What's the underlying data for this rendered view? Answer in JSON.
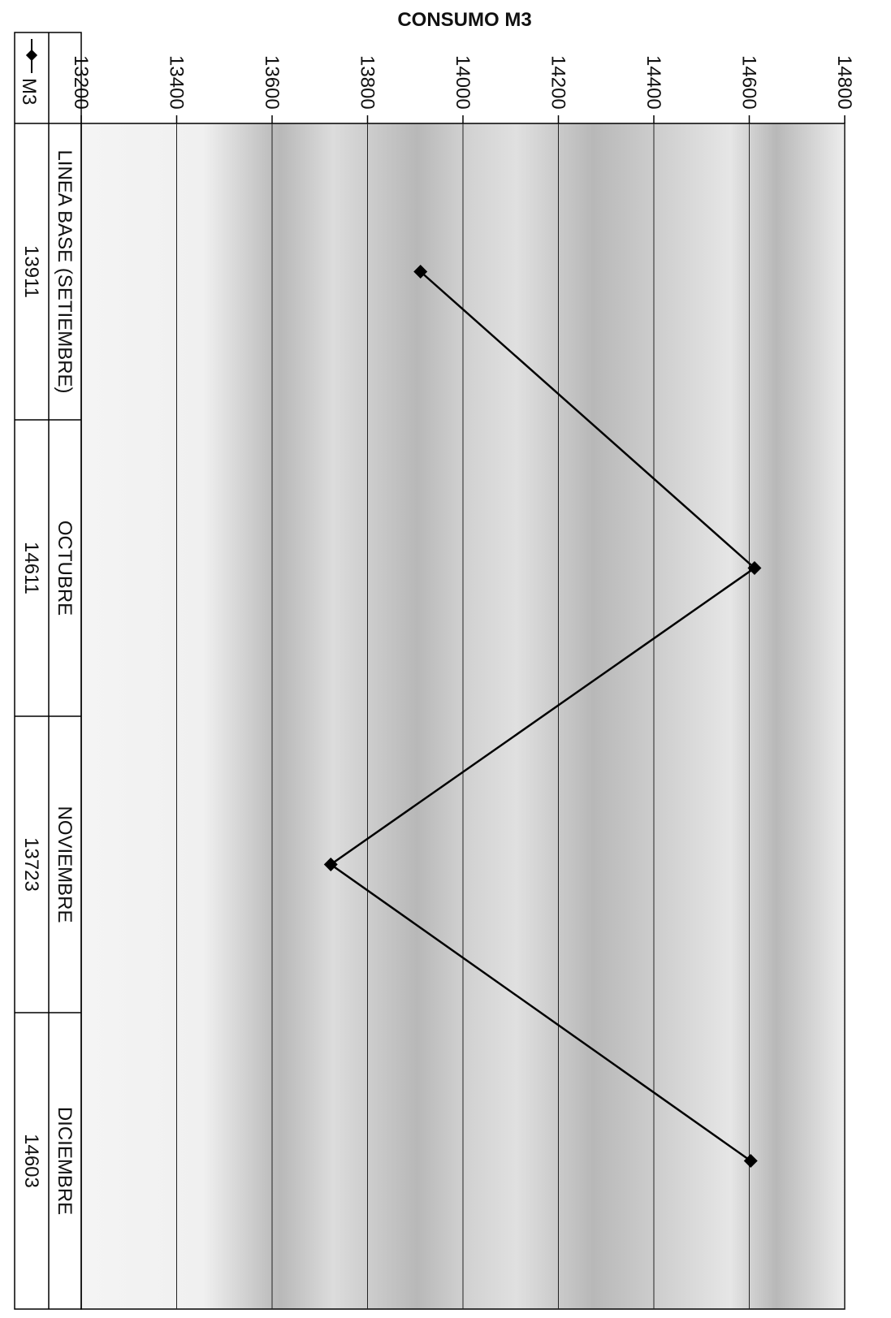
{
  "chart_data": {
    "type": "line",
    "title": "CONSUMO M3",
    "categories": [
      "LINEA BASE (SETIEMBRE)",
      "OCTUBRE",
      "NOVIEMBRE",
      "DICIEMBRE"
    ],
    "series": [
      {
        "name": "M3",
        "values": [
          13911,
          14611,
          13723,
          14603
        ]
      }
    ],
    "ylim": [
      13200,
      14800
    ],
    "yticks": [
      13200,
      13400,
      13600,
      13800,
      14000,
      14200,
      14400,
      14600,
      14800
    ],
    "grid": true,
    "legend": "data-table",
    "orientation": "rotated-90-clockwise",
    "colors": {
      "line": "#000000",
      "marker": "#000000",
      "band": "#b8b8b8"
    }
  }
}
